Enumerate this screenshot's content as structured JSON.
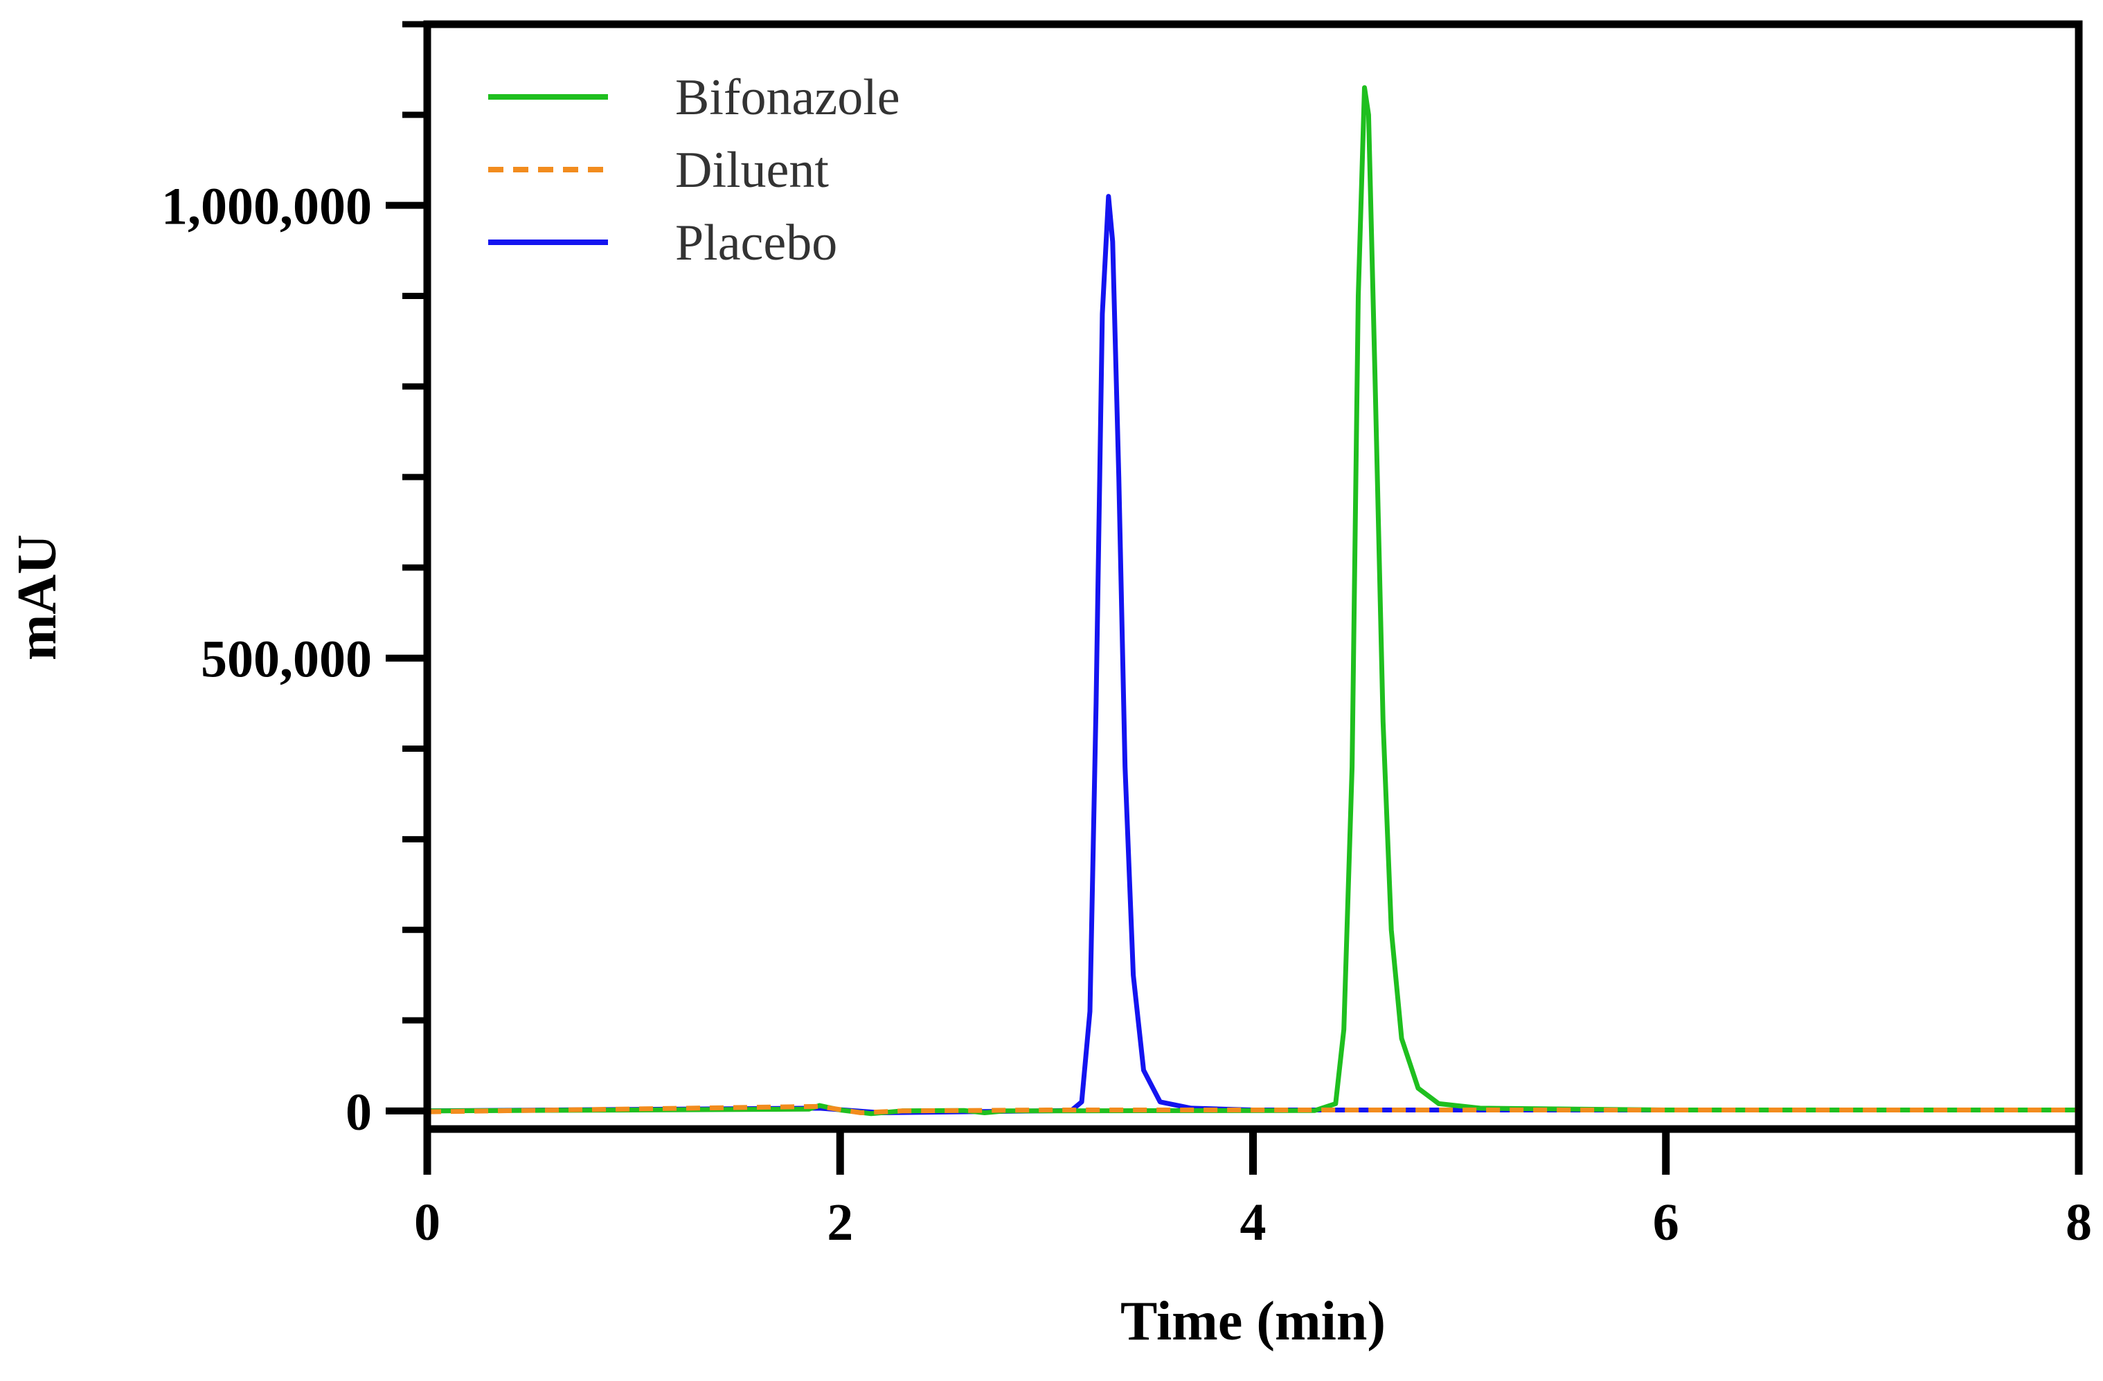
{
  "chart_data": {
    "type": "line",
    "xlabel": "Time (min)",
    "ylabel": "mAU",
    "xlim": [
      0,
      8
    ],
    "ylim": [
      -20000,
      1200000
    ],
    "x_ticks": [
      0,
      2,
      4,
      6,
      8
    ],
    "x_tick_labels": [
      "0",
      "2",
      "4",
      "6",
      "8"
    ],
    "y_ticks": [
      0,
      500000,
      1000000
    ],
    "y_tick_labels": [
      "0",
      "500,000",
      "1,000,000"
    ],
    "y_minor_step": 100000,
    "grid": false,
    "legend_position": "top-left",
    "series": [
      {
        "name": "Bifonazole",
        "color": "#1fbf1f",
        "dash": "solid",
        "points": [
          [
            0,
            0
          ],
          [
            1.0,
            1000
          ],
          [
            1.85,
            2000
          ],
          [
            1.9,
            6000
          ],
          [
            2.0,
            1000
          ],
          [
            2.15,
            -3000
          ],
          [
            2.3,
            0
          ],
          [
            2.6,
            500
          ],
          [
            2.7,
            -2000
          ],
          [
            2.8,
            0
          ],
          [
            4.3,
            500
          ],
          [
            4.4,
            8000
          ],
          [
            4.44,
            90000
          ],
          [
            4.48,
            380000
          ],
          [
            4.51,
            900000
          ],
          [
            4.54,
            1130000
          ],
          [
            4.56,
            1100000
          ],
          [
            4.59,
            820000
          ],
          [
            4.63,
            430000
          ],
          [
            4.67,
            200000
          ],
          [
            4.72,
            80000
          ],
          [
            4.8,
            25000
          ],
          [
            4.9,
            8000
          ],
          [
            5.1,
            3000
          ],
          [
            6.0,
            1000
          ],
          [
            8.0,
            1000
          ]
        ]
      },
      {
        "name": "Diluent",
        "color": "#f28c1e",
        "dash": "dashed",
        "points": [
          [
            0,
            -1000
          ],
          [
            1.9,
            5000
          ],
          [
            2.1,
            -2000
          ],
          [
            2.3,
            0
          ],
          [
            3.0,
            1000
          ],
          [
            8.0,
            1000
          ]
        ]
      },
      {
        "name": "Placebo",
        "color": "#1414f0",
        "dash": "solid",
        "points": [
          [
            0,
            0
          ],
          [
            1.9,
            3000
          ],
          [
            2.2,
            -2000
          ],
          [
            3.12,
            500
          ],
          [
            3.17,
            10000
          ],
          [
            3.21,
            110000
          ],
          [
            3.24,
            450000
          ],
          [
            3.27,
            880000
          ],
          [
            3.3,
            1010000
          ],
          [
            3.32,
            960000
          ],
          [
            3.35,
            700000
          ],
          [
            3.38,
            380000
          ],
          [
            3.42,
            150000
          ],
          [
            3.47,
            45000
          ],
          [
            3.55,
            10000
          ],
          [
            3.7,
            3000
          ],
          [
            4.0,
            1000
          ],
          [
            8.0,
            1000
          ]
        ]
      }
    ]
  }
}
